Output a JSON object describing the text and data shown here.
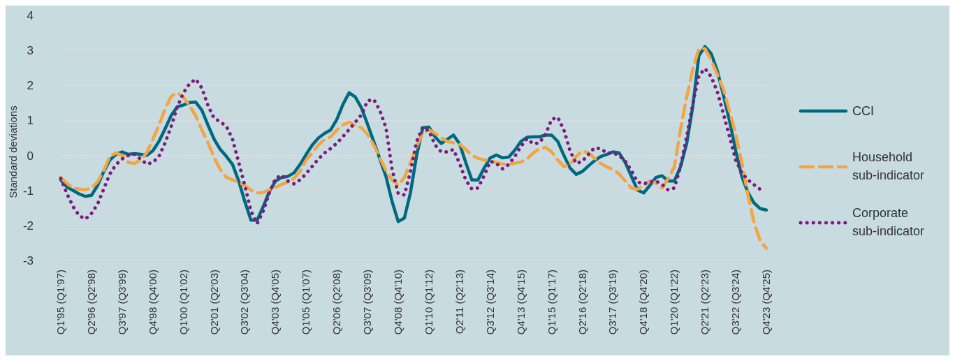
{
  "chart_data": {
    "type": "line",
    "ylabel": "Standard deviations",
    "categories": [
      "Q1'95 (Q1'97)",
      null,
      null,
      null,
      null,
      "Q2'96 (Q2'98)",
      null,
      null,
      null,
      null,
      "Q3'97 (Q3'99)",
      null,
      null,
      null,
      null,
      "Q4'98 (Q4'00)",
      null,
      null,
      null,
      null,
      "Q1'00 (Q1'02)",
      null,
      null,
      null,
      null,
      "Q2'01 (Q2'03)",
      null,
      null,
      null,
      null,
      "Q3'02 (Q3'04)",
      null,
      null,
      null,
      null,
      "Q4'03 (Q4'05)",
      null,
      null,
      null,
      null,
      "Q1'05 (Q1'07)",
      null,
      null,
      null,
      null,
      "Q2'06 (Q2'08)",
      null,
      null,
      null,
      null,
      "Q3'07 (Q3'09)",
      null,
      null,
      null,
      null,
      "Q4'08 (Q4'10)",
      null,
      null,
      null,
      null,
      "Q1'10 (Q1'12)",
      null,
      null,
      null,
      null,
      "Q2'11 (Q2'13)",
      null,
      null,
      null,
      null,
      "Q3'12 (Q3'14)",
      null,
      null,
      null,
      null,
      "Q4'13 (Q4'15)",
      null,
      null,
      null,
      null,
      "Q1'15 (Q1'17)",
      null,
      null,
      null,
      null,
      "Q2'16 (Q2'18)",
      null,
      null,
      null,
      null,
      "Q3'17 (Q3'19)",
      null,
      null,
      null,
      null,
      "Q4'18 (Q4'20)",
      null,
      null,
      null,
      null,
      "Q1'20 (Q1'22)",
      null,
      null,
      null,
      null,
      "Q2'21 (Q2'23)",
      null,
      null,
      null,
      null,
      "Q3'22 (Q3'24)",
      null,
      null,
      null,
      null,
      "Q4'23 (Q4'25)"
    ],
    "series": [
      {
        "name": "CCI",
        "color": "#00697f",
        "line_style": "solid",
        "values": [
          -0.7,
          -0.9,
          -1.0,
          -1.1,
          -1.17,
          -1.14,
          -0.86,
          -0.46,
          -0.13,
          0.03,
          0.1,
          0.03,
          0.05,
          0.03,
          0.0,
          0.13,
          0.4,
          0.76,
          1.14,
          1.39,
          1.44,
          1.51,
          1.52,
          1.29,
          0.86,
          0.46,
          0.17,
          -0.03,
          -0.26,
          -0.73,
          -1.32,
          -1.85,
          -1.85,
          -1.46,
          -1.03,
          -0.73,
          -0.63,
          -0.6,
          -0.5,
          -0.26,
          0.03,
          0.3,
          0.5,
          0.63,
          0.73,
          1.03,
          1.46,
          1.79,
          1.67,
          1.36,
          0.89,
          0.4,
          -0.1,
          -0.6,
          -1.32,
          -1.89,
          -1.79,
          -1.06,
          0.0,
          0.79,
          0.81,
          0.53,
          0.34,
          0.46,
          0.58,
          0.33,
          -0.2,
          -0.7,
          -0.7,
          -0.36,
          -0.07,
          0.01,
          -0.07,
          -0.05,
          0.15,
          0.4,
          0.52,
          0.53,
          0.53,
          0.58,
          0.58,
          0.4,
          0.0,
          -0.36,
          -0.54,
          -0.46,
          -0.3,
          -0.15,
          -0.03,
          0.03,
          0.1,
          0.07,
          -0.2,
          -0.6,
          -0.99,
          -1.07,
          -0.86,
          -0.63,
          -0.58,
          -0.73,
          -0.73,
          -0.33,
          0.33,
          1.39,
          2.85,
          3.11,
          2.91,
          2.42,
          1.72,
          0.99,
          0.13,
          -0.6,
          -1.06,
          -1.36,
          -1.52,
          -1.56
        ]
      },
      {
        "name": "Household sub-indicator",
        "color": "#f2a541",
        "line_style": "dashed",
        "values": [
          -0.63,
          -0.8,
          -0.93,
          -0.96,
          -0.98,
          -0.93,
          -0.76,
          -0.43,
          -0.03,
          0.07,
          0.0,
          -0.2,
          -0.23,
          -0.13,
          0.07,
          0.46,
          0.86,
          1.32,
          1.69,
          1.79,
          1.66,
          1.42,
          1.13,
          0.73,
          0.36,
          -0.07,
          -0.4,
          -0.63,
          -0.7,
          -0.76,
          -0.86,
          -0.99,
          -1.07,
          -1.06,
          -0.98,
          -0.91,
          -0.83,
          -0.76,
          -0.66,
          -0.46,
          -0.13,
          0.07,
          0.3,
          0.46,
          0.53,
          0.73,
          0.87,
          0.95,
          0.85,
          0.79,
          0.6,
          0.3,
          -0.07,
          -0.43,
          -0.7,
          -0.85,
          -0.63,
          -0.2,
          0.26,
          0.63,
          0.73,
          0.63,
          0.5,
          0.4,
          0.36,
          0.32,
          0.17,
          0.0,
          -0.08,
          -0.13,
          -0.17,
          -0.2,
          -0.25,
          -0.26,
          -0.22,
          -0.19,
          -0.1,
          0.07,
          0.19,
          0.23,
          0.1,
          -0.13,
          -0.32,
          -0.26,
          -0.03,
          0.13,
          0.07,
          -0.08,
          -0.23,
          -0.33,
          -0.4,
          -0.53,
          -0.73,
          -0.93,
          -0.97,
          -0.86,
          -0.73,
          -0.79,
          -0.93,
          -0.66,
          -0.33,
          0.73,
          1.66,
          2.45,
          3.05,
          3.05,
          2.72,
          2.32,
          1.89,
          1.26,
          0.6,
          -0.2,
          -1.13,
          -1.92,
          -2.45,
          -2.65
        ]
      },
      {
        "name": "Corporate sub-indicator",
        "color": "#7b1c7d",
        "line_style": "dotted",
        "values": [
          -0.66,
          -1.09,
          -1.46,
          -1.72,
          -1.82,
          -1.66,
          -1.39,
          -0.96,
          -0.53,
          -0.26,
          -0.1,
          0.0,
          0.03,
          -0.1,
          -0.25,
          -0.2,
          -0.03,
          0.36,
          0.83,
          1.39,
          1.79,
          2.05,
          2.18,
          1.92,
          1.42,
          1.06,
          0.96,
          0.83,
          0.46,
          -0.2,
          -0.86,
          -1.59,
          -1.95,
          -1.59,
          -1.06,
          -0.66,
          -0.56,
          -0.73,
          -0.81,
          -0.7,
          -0.52,
          -0.31,
          -0.1,
          0.07,
          0.2,
          0.35,
          0.54,
          0.74,
          0.95,
          1.16,
          1.56,
          1.6,
          1.29,
          0.79,
          -0.4,
          -1.09,
          -1.13,
          -0.46,
          0.4,
          0.81,
          0.7,
          0.3,
          0.1,
          0.1,
          0.17,
          -0.23,
          -0.7,
          -0.96,
          -0.93,
          -0.58,
          -0.17,
          -0.23,
          -0.38,
          -0.26,
          -0.03,
          0.26,
          0.48,
          0.33,
          0.36,
          0.6,
          1.03,
          1.09,
          0.73,
          0.13,
          -0.23,
          -0.17,
          0.03,
          0.22,
          0.19,
          0.07,
          0.07,
          0.0,
          -0.17,
          -0.43,
          -0.76,
          -0.81,
          -0.76,
          -0.73,
          -0.83,
          -0.99,
          -0.93,
          -0.33,
          0.53,
          1.46,
          2.28,
          2.48,
          2.25,
          1.82,
          1.19,
          0.53,
          -0.13,
          -0.5,
          -0.7,
          -0.84,
          -0.97,
          null
        ]
      }
    ],
    "ylim": [
      -3,
      4
    ],
    "yticks": [
      -3,
      -2,
      -1,
      0,
      1,
      2,
      3,
      4
    ],
    "grid": "y",
    "legend": "right",
    "marker": "none"
  }
}
